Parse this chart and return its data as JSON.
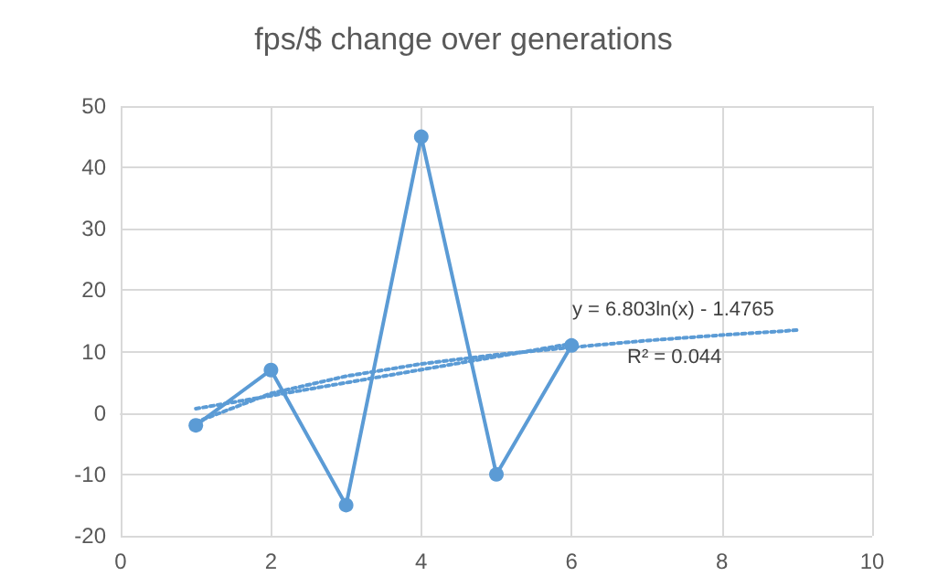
{
  "chart_data": {
    "type": "line",
    "title": "fps/$ change over generations",
    "series": [
      {
        "color": "#5b9bd5",
        "x": [
          1,
          2,
          3,
          4,
          5,
          6
        ],
        "values": [
          -2,
          7,
          -15,
          45,
          -10,
          11
        ],
        "marker": "circle",
        "line_style": "solid"
      },
      {
        "color": "#5b9bd5",
        "x": [
          1,
          2,
          3,
          4,
          5,
          6,
          7,
          8,
          9
        ],
        "values": [
          -1.5,
          3.2,
          6,
          8,
          9.5,
          10.7,
          11.8,
          12.7,
          13.5
        ],
        "marker": "none",
        "line_style": "dotted"
      },
      {
        "color": "#5b9bd5",
        "x": [
          1,
          6
        ],
        "values": [
          0.7,
          11.3
        ],
        "marker": "none",
        "line_style": "dotted"
      }
    ],
    "xlim": [
      0,
      10
    ],
    "xticks": [
      0,
      2,
      4,
      6,
      8,
      10
    ],
    "ylim": [
      -20,
      50
    ],
    "yticks": [
      -20,
      -10,
      0,
      10,
      20,
      30,
      40,
      50
    ],
    "grid": true,
    "annotations": [
      "y = 6.803ln(x) - 1.4765",
      "R² = 0.044"
    ]
  }
}
